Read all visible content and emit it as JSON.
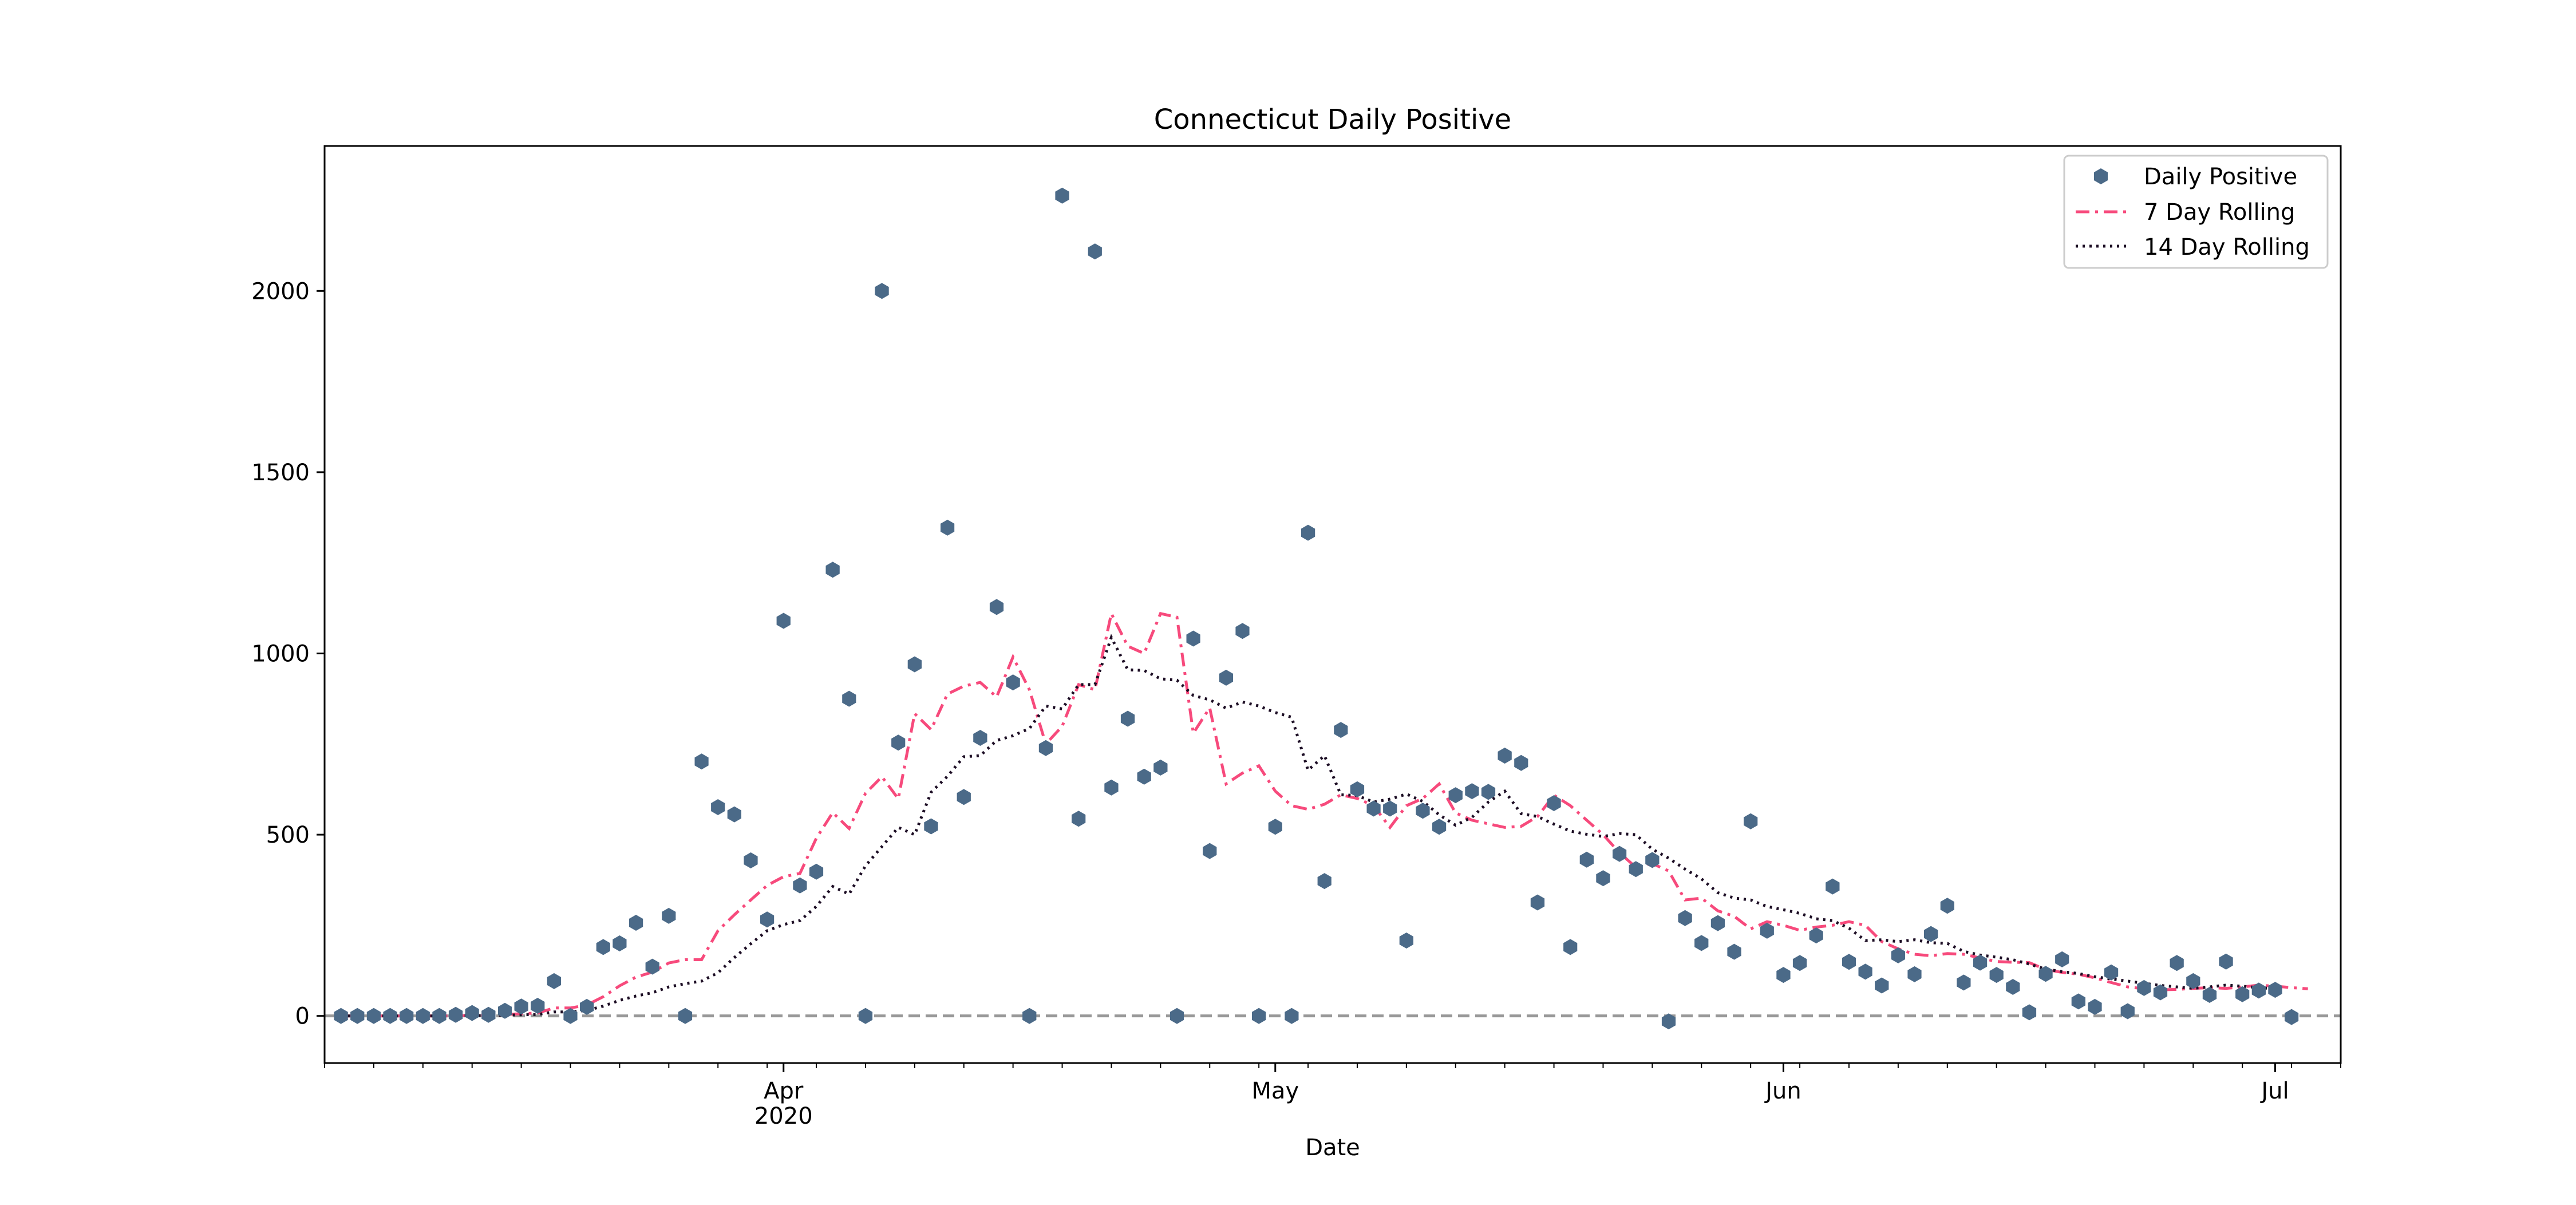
{
  "chart_data": {
    "type": "scatter",
    "title": "Connecticut Daily Positive",
    "xlabel": "Date",
    "ylabel": "",
    "x_start": "2020-03-05",
    "xlim": [
      "2020-03-04",
      "2020-07-05"
    ],
    "ylim": [
      -130,
      2400
    ],
    "yticks": [
      0,
      500,
      1000,
      1500,
      2000
    ],
    "xticks": [
      {
        "date": "2020-04-01",
        "label": "Apr",
        "sublabel": "2020"
      },
      {
        "date": "2020-05-01",
        "label": "May",
        "sublabel": ""
      },
      {
        "date": "2020-06-01",
        "label": "Jun",
        "sublabel": ""
      },
      {
        "date": "2020-07-01",
        "label": "Jul",
        "sublabel": ""
      }
    ],
    "minor_ticks_every_days": 3,
    "grid": false,
    "legend_position": "top-right",
    "reference_line": {
      "y": 0,
      "color": "#999999",
      "style": "dashed"
    },
    "colors": {
      "points": "#4b6a88",
      "rolling7": "#f74a7c",
      "rolling14": "#1c0d24"
    },
    "series": [
      {
        "name": "Daily Positive",
        "kind": "points",
        "values": [
          0,
          0,
          0,
          0,
          0,
          0,
          0,
          3,
          8,
          3,
          14,
          26,
          28,
          96,
          0,
          25,
          190,
          200,
          257,
          136,
          276,
          0,
          702,
          576,
          556,
          429,
          266,
          1090,
          360,
          398,
          1231,
          875,
          0,
          2000,
          754,
          970,
          523,
          1347,
          604,
          767,
          1128,
          920,
          0,
          739,
          2263,
          544,
          2109,
          630,
          820,
          660,
          685,
          0,
          1041,
          455,
          933,
          1062,
          0,
          522,
          0,
          1333,
          372,
          789,
          625,
          572,
          572,
          208,
          566,
          522,
          609,
          620,
          618,
          718,
          698,
          313,
          587,
          190,
          431,
          380,
          447,
          405,
          430,
          -15,
          270,
          201,
          256,
          177,
          537,
          235,
          113,
          146,
          222,
          357,
          149,
          122,
          84,
          167,
          115,
          226,
          304,
          92,
          147,
          113,
          80,
          10,
          116,
          156,
          40,
          25,
          120,
          13,
          77,
          65,
          146,
          96,
          58,
          150,
          60,
          70,
          72,
          -3
        ]
      },
      {
        "name": "7 Day Rolling",
        "kind": "line",
        "values": [
          0,
          0,
          0,
          0,
          0,
          0,
          0,
          0,
          2,
          2,
          4,
          6,
          8,
          22,
          22,
          30,
          53,
          83,
          107,
          121,
          146,
          155,
          155,
          235,
          279,
          320,
          360,
          384,
          393,
          490,
          561,
          517,
          614,
          660,
          599,
          834,
          790,
          888,
          910,
          920,
          880,
          990,
          900,
          750,
          799,
          914,
          900,
          1110,
          1020,
          1000,
          1110,
          1100,
          780,
          850,
          640,
          670,
          690,
          620,
          580,
          570,
          584,
          610,
          600,
          580,
          520,
          580,
          600,
          640,
          560,
          540,
          530,
          520,
          523,
          550,
          609,
          580,
          540,
          500,
          450,
          410,
          420,
          400,
          320,
          325,
          290,
          275,
          240,
          260,
          250,
          236,
          245,
          250,
          260,
          250,
          205,
          185,
          170,
          166,
          172,
          170,
          160,
          150,
          148,
          147,
          128,
          120,
          115,
          105,
          92,
          80,
          75,
          72,
          73,
          76,
          78,
          76,
          80,
          85,
          82,
          78,
          75
        ]
      },
      {
        "name": "14 Day Rolling",
        "kind": "line",
        "values": [
          0,
          0,
          0,
          0,
          0,
          0,
          0,
          0,
          1,
          1,
          2,
          3,
          4,
          11,
          11,
          15,
          27,
          43,
          55,
          64,
          80,
          89,
          96,
          119,
          161,
          199,
          235,
          252,
          263,
          302,
          357,
          336,
          414,
          467,
          520,
          500,
          617,
          661,
          715,
          718,
          760,
          773,
          793,
          855,
          847,
          914,
          914,
          1044,
          955,
          953,
          930,
          926,
          884,
          872,
          849,
          866,
          855,
          837,
          824,
          678,
          718,
          610,
          608,
          590,
          598,
          612,
          592,
          555,
          526,
          548,
          590,
          620,
          558,
          550,
          529,
          510,
          501,
          495,
          503,
          500,
          460,
          435,
          405,
          378,
          340,
          325,
          320,
          302,
          293,
          283,
          268,
          263,
          242,
          208,
          210,
          205,
          210,
          202,
          200,
          178,
          168,
          162,
          155,
          143,
          129,
          122,
          117,
          108,
          102,
          96,
          90,
          84,
          80,
          76,
          80,
          85,
          82,
          78,
          75
        ]
      }
    ]
  }
}
